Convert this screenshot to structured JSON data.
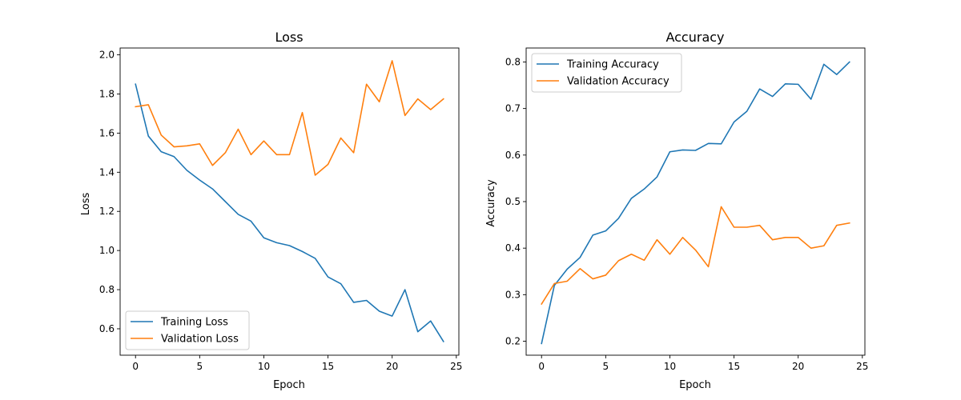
{
  "figure": {
    "background": "#ffffff"
  },
  "chart_data": [
    {
      "type": "line",
      "title": "Loss",
      "xlabel": "Epoch",
      "ylabel": "Loss",
      "xlim": [
        -1.2,
        25.2
      ],
      "ylim": [
        0.465,
        2.035
      ],
      "xticks": [
        0,
        5,
        10,
        15,
        20,
        25
      ],
      "yticks": [
        0.6,
        0.8,
        1.0,
        1.2,
        1.4,
        1.6,
        1.8,
        2.0
      ],
      "ytick_format": 1,
      "grid": false,
      "legend_position": "lower-left",
      "x": [
        0,
        1,
        2,
        3,
        4,
        5,
        6,
        7,
        8,
        9,
        10,
        11,
        12,
        13,
        14,
        15,
        16,
        17,
        18,
        19,
        20,
        21,
        22,
        23,
        24
      ],
      "series": [
        {
          "name": "Training Loss",
          "color": "#1f77b4",
          "values": [
            1.85,
            1.585,
            1.505,
            1.48,
            1.41,
            1.36,
            1.315,
            1.25,
            1.185,
            1.15,
            1.065,
            1.04,
            1.025,
            0.995,
            0.96,
            0.865,
            0.83,
            0.735,
            0.745,
            0.69,
            0.665,
            0.8,
            0.585,
            0.64,
            0.535
          ]
        },
        {
          "name": "Validation Loss",
          "color": "#ff7f0e",
          "values": [
            1.735,
            1.745,
            1.59,
            1.53,
            1.535,
            1.545,
            1.435,
            1.5,
            1.62,
            1.49,
            1.56,
            1.49,
            1.49,
            1.705,
            1.385,
            1.44,
            1.575,
            1.5,
            1.85,
            1.76,
            1.97,
            1.69,
            1.775,
            1.72,
            1.775
          ]
        }
      ]
    },
    {
      "type": "line",
      "title": "Accuracy",
      "xlabel": "Epoch",
      "ylabel": "Accuracy",
      "xlim": [
        -1.2,
        25.2
      ],
      "ylim": [
        0.17,
        0.83
      ],
      "xticks": [
        0,
        5,
        10,
        15,
        20,
        25
      ],
      "yticks": [
        0.2,
        0.3,
        0.4,
        0.5,
        0.6,
        0.7,
        0.8
      ],
      "ytick_format": 1,
      "grid": false,
      "legend_position": "upper-left",
      "x": [
        0,
        1,
        2,
        3,
        4,
        5,
        6,
        7,
        8,
        9,
        10,
        11,
        12,
        13,
        14,
        15,
        16,
        17,
        18,
        19,
        20,
        21,
        22,
        23,
        24
      ],
      "series": [
        {
          "name": "Training Accuracy",
          "color": "#1f77b4",
          "values": [
            0.195,
            0.32,
            0.355,
            0.38,
            0.428,
            0.437,
            0.464,
            0.507,
            0.527,
            0.553,
            0.607,
            0.611,
            0.61,
            0.625,
            0.624,
            0.671,
            0.694,
            0.742,
            0.726,
            0.753,
            0.752,
            0.72,
            0.795,
            0.773,
            0.8
          ]
        },
        {
          "name": "Validation Accuracy",
          "color": "#ff7f0e",
          "values": [
            0.28,
            0.324,
            0.329,
            0.356,
            0.334,
            0.342,
            0.373,
            0.387,
            0.374,
            0.418,
            0.387,
            0.423,
            0.396,
            0.36,
            0.489,
            0.445,
            0.445,
            0.449,
            0.418,
            0.423,
            0.423,
            0.4,
            0.405,
            0.449,
            0.454
          ]
        }
      ]
    }
  ]
}
